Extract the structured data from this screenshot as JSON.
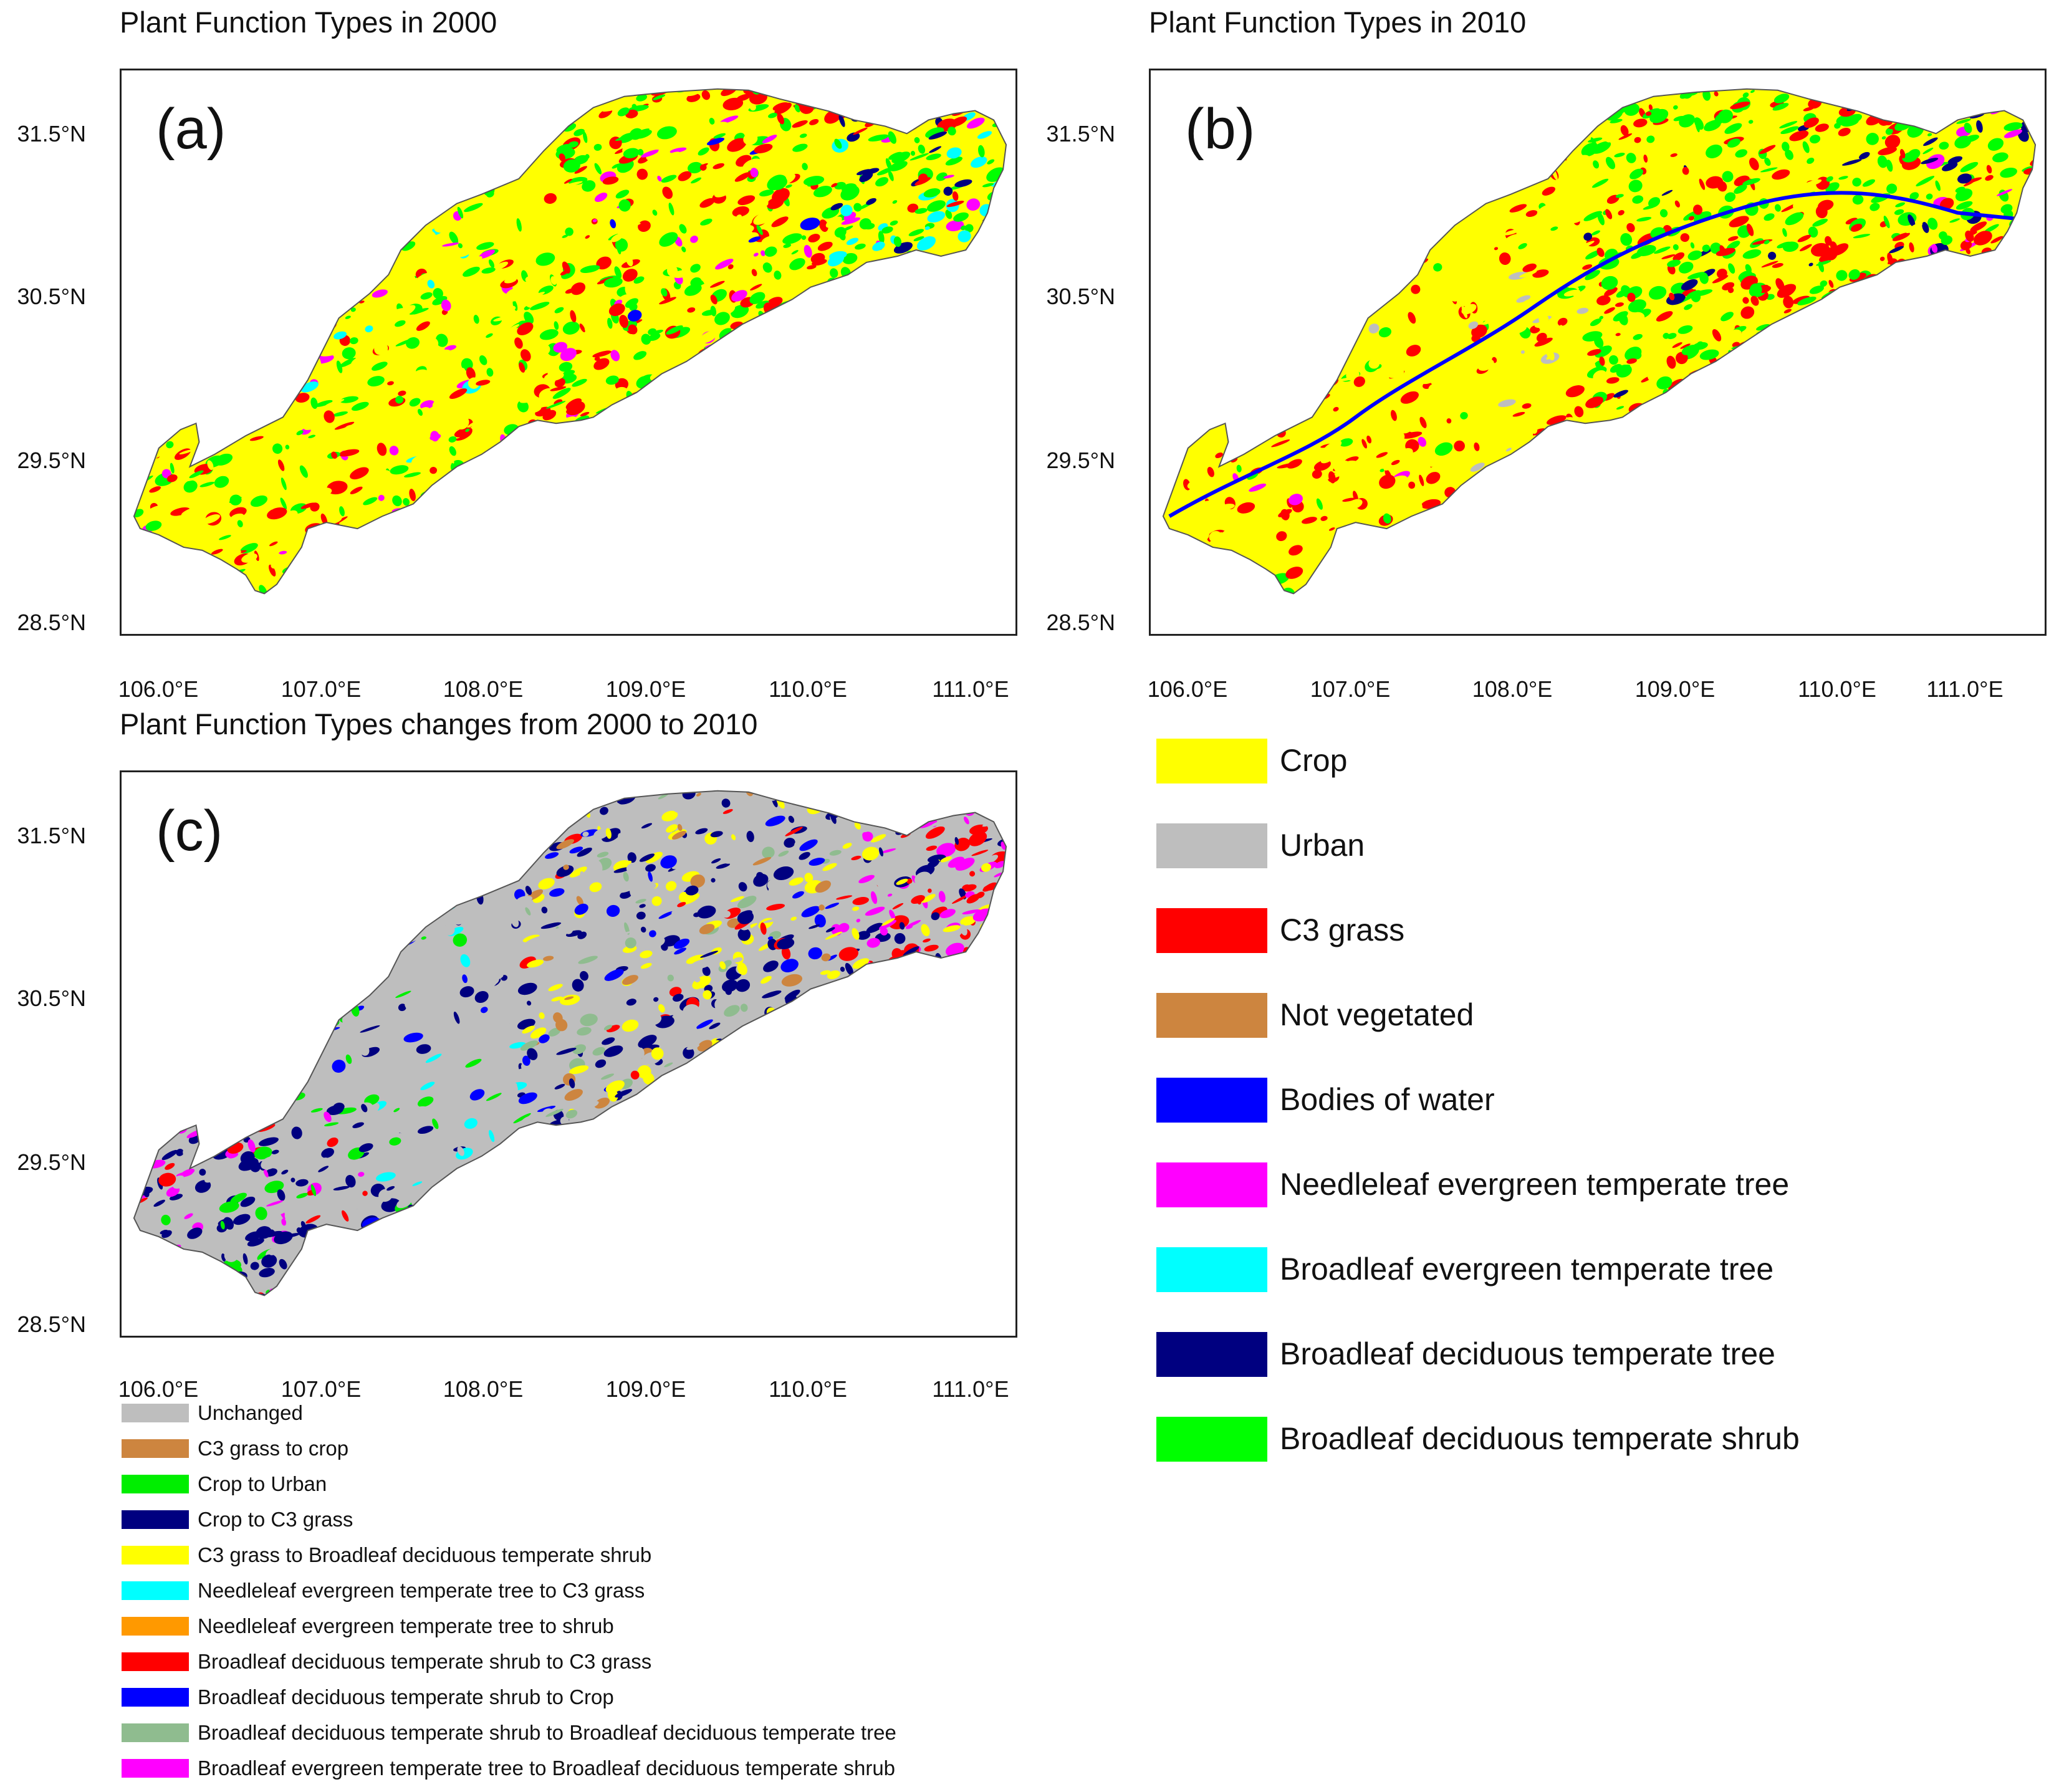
{
  "panels": {
    "a": {
      "title": "Plant Function Types in 2000",
      "label": "(a)"
    },
    "b": {
      "title": "Plant Function Types in 2010",
      "label": "(b)"
    },
    "c": {
      "title": "Plant Function Types changes from 2000 to 2010",
      "label": "(c)"
    }
  },
  "axes": {
    "lat_ticks": [
      "31.5°N",
      "30.5°N",
      "29.5°N",
      "28.5°N"
    ],
    "lon_ticks": [
      "106.0°E",
      "107.0°E",
      "108.0°E",
      "109.0°E",
      "110.0°E",
      "111.0°E"
    ]
  },
  "pft_legend": [
    {
      "label": "Crop",
      "color": "#ffff00"
    },
    {
      "label": "Urban",
      "color": "#bebebe"
    },
    {
      "label": "C3 grass",
      "color": "#ff0000"
    },
    {
      "label": "Not vegetated",
      "color": "#cd853f"
    },
    {
      "label": "Bodies of water",
      "color": "#0000ff"
    },
    {
      "label": "Needleleaf evergreen temperate tree",
      "color": "#ff00ff"
    },
    {
      "label": "Broadleaf evergreen temperate tree",
      "color": "#00ffff"
    },
    {
      "label": "Broadleaf deciduous temperate tree",
      "color": "#000080"
    },
    {
      "label": "Broadleaf deciduous temperate shrub",
      "color": "#00ff00"
    }
  ],
  "change_legend": [
    {
      "label": "Unchanged",
      "color": "#bebebe"
    },
    {
      "label": "C3 grass to crop",
      "color": "#cd853f"
    },
    {
      "label": "Crop to Urban",
      "color": "#00ee00"
    },
    {
      "label": "Crop to C3 grass",
      "color": "#000080"
    },
    {
      "label": "C3 grass to Broadleaf deciduous temperate shrub",
      "color": "#ffff00"
    },
    {
      "label": "Needleleaf evergreen temperate tree to C3 grass",
      "color": "#00ffff"
    },
    {
      "label": "Needleleaf evergreen temperate tree to shrub",
      "color": "#ff9900"
    },
    {
      "label": "Broadleaf deciduous temperate shrub to C3 grass",
      "color": "#ff0000"
    },
    {
      "label": "Broadleaf deciduous temperate shrub to Crop",
      "color": "#0000ff"
    },
    {
      "label": "Broadleaf deciduous temperate shrub to Broadleaf deciduous temperate tree",
      "color": "#8fbc8f"
    },
    {
      "label": "Broadleaf evergreen temperate tree to Broadleaf deciduous temperate shrub",
      "color": "#ff00ff"
    }
  ]
}
